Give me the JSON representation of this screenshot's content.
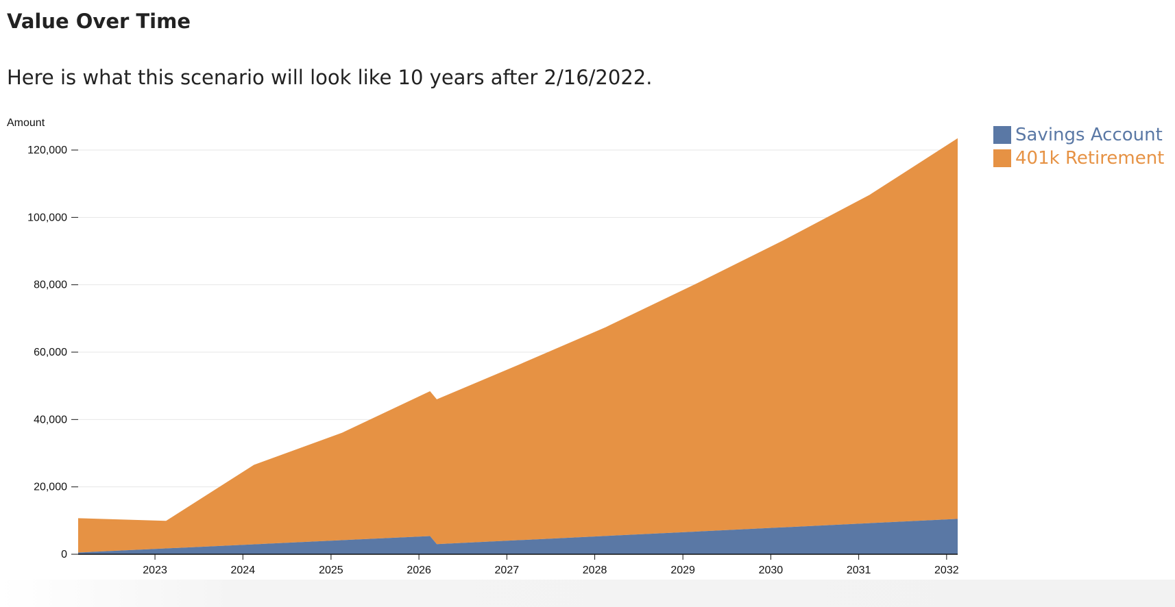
{
  "header": {
    "title": "Value Over Time",
    "description": "Here is what this scenario will look like 10 years after 2/16/2022."
  },
  "chart_data": {
    "type": "area",
    "stacked": true,
    "title": "",
    "xlabel": "",
    "ylabel": "Amount",
    "x_range": [
      "2022-02-16",
      "2032-02-16"
    ],
    "ylim": [
      0,
      120000
    ],
    "y_ticks": [
      {
        "value": 0,
        "label": "0"
      },
      {
        "value": 20000,
        "label": "20,000"
      },
      {
        "value": 40000,
        "label": "40,000"
      },
      {
        "value": 60000,
        "label": "60,000"
      },
      {
        "value": 80000,
        "label": "80,000"
      },
      {
        "value": 100000,
        "label": "100,000"
      },
      {
        "value": 120000,
        "label": "120,000"
      }
    ],
    "x_ticks": [
      {
        "value": "2023-01-01",
        "label": "2023"
      },
      {
        "value": "2024-01-01",
        "label": "2024"
      },
      {
        "value": "2025-01-01",
        "label": "2025"
      },
      {
        "value": "2026-01-01",
        "label": "2026"
      },
      {
        "value": "2027-01-01",
        "label": "2027"
      },
      {
        "value": "2028-01-01",
        "label": "2028"
      },
      {
        "value": "2029-01-01",
        "label": "2029"
      },
      {
        "value": "2030-01-01",
        "label": "2030"
      },
      {
        "value": "2031-01-01",
        "label": "2031"
      },
      {
        "value": "2032-01-01",
        "label": "2032"
      }
    ],
    "grid": true,
    "legend_position": "top-right",
    "series": [
      {
        "name": "Savings Account",
        "color": "#5a78a5",
        "points": [
          {
            "x": "2022-02-16",
            "y": 500
          },
          {
            "x": "2026-02-16",
            "y": 5400
          },
          {
            "x": "2026-03-16",
            "y": 3000
          },
          {
            "x": "2032-02-16",
            "y": 10500
          }
        ]
      },
      {
        "name": "401k Retirement",
        "color": "#e69244",
        "points": [
          {
            "x": "2022-02-16",
            "y": 10200
          },
          {
            "x": "2023-02-16",
            "y": 8200
          },
          {
            "x": "2024-02-16",
            "y": 23600
          },
          {
            "x": "2025-02-16",
            "y": 31900
          },
          {
            "x": "2026-02-16",
            "y": 43000
          },
          {
            "x": "2026-03-16",
            "y": 43000
          },
          {
            "x": "2027-02-16",
            "y": 52000
          },
          {
            "x": "2028-02-16",
            "y": 62000
          },
          {
            "x": "2029-02-16",
            "y": 73300
          },
          {
            "x": "2030-02-16",
            "y": 85000
          },
          {
            "x": "2031-02-16",
            "y": 97500
          },
          {
            "x": "2032-02-16",
            "y": 113000
          }
        ]
      }
    ]
  }
}
